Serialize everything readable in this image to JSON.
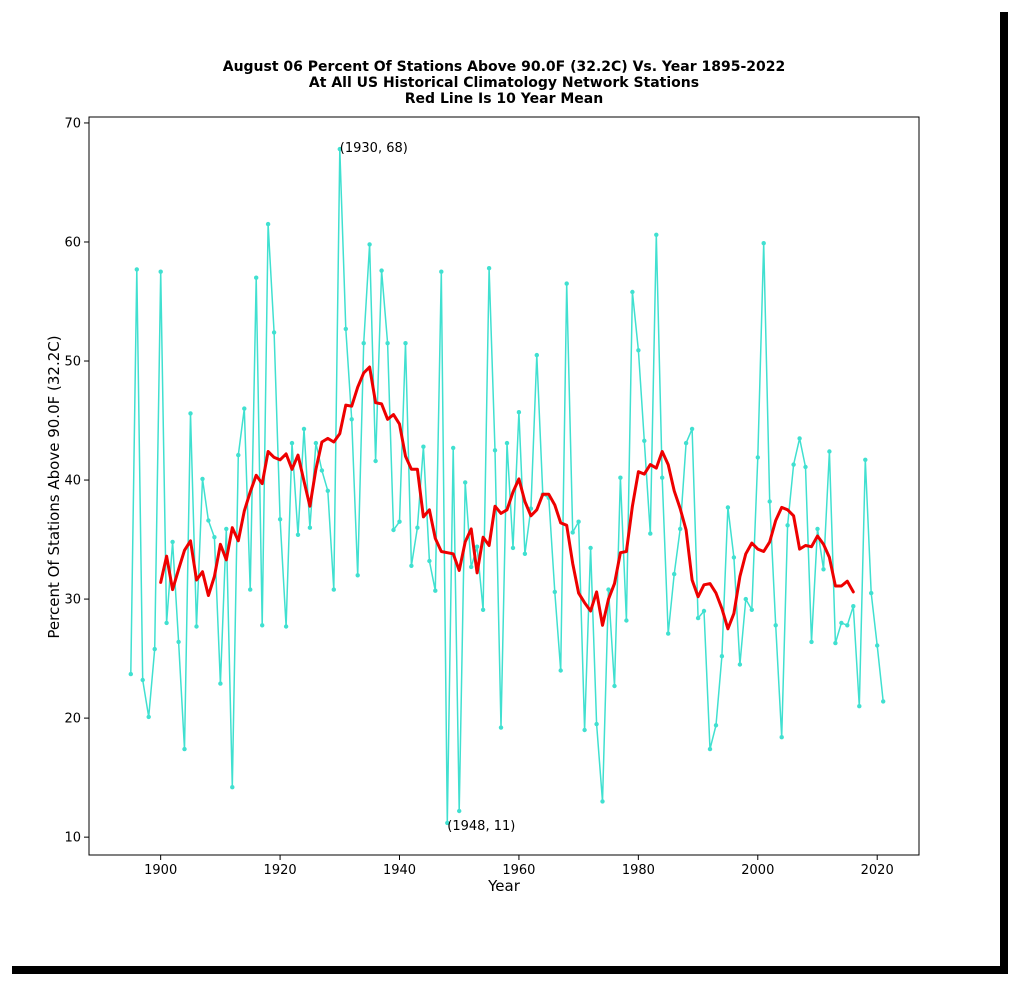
{
  "chart_data": {
    "type": "line",
    "title_lines": [
      "August 06 Percent Of Stations Above 90.0F (32.2C) Vs. Year 1895-2022",
      "At All US Historical Climatology Network Stations",
      "Red Line Is 10 Year Mean"
    ],
    "xlabel": "Year",
    "ylabel": "Percent Of Stations Above 90.0F (32.2C)",
    "xlim": [
      1888,
      2027
    ],
    "ylim": [
      8.5,
      70.5
    ],
    "xticks": [
      1900,
      1920,
      1940,
      1960,
      1980,
      2000,
      2020
    ],
    "yticks": [
      10,
      20,
      30,
      40,
      50,
      60,
      70
    ],
    "grid": false,
    "colors": {
      "series": "#40e0d0",
      "mean": "#ee0000"
    },
    "series": [
      {
        "x": [
          1895,
          1896,
          1897,
          1898,
          1899,
          1900,
          1901,
          1902,
          1903,
          1904,
          1905,
          1906,
          1907,
          1908,
          1909,
          1910,
          1911,
          1912,
          1913,
          1914,
          1915,
          1916,
          1917,
          1918,
          1919,
          1920,
          1921,
          1922,
          1923,
          1924,
          1925,
          1926,
          1927,
          1928,
          1929,
          1930,
          1931,
          1932,
          1933,
          1934,
          1935,
          1936,
          1937,
          1938,
          1939,
          1940,
          1941,
          1942,
          1943,
          1944,
          1945,
          1946,
          1947,
          1948,
          1949,
          1950,
          1951,
          1952,
          1953,
          1954,
          1955,
          1956,
          1957,
          1958,
          1959,
          1960,
          1961,
          1962,
          1963,
          1964,
          1965,
          1966,
          1967,
          1968,
          1969,
          1970,
          1971,
          1972,
          1973,
          1974,
          1975,
          1976,
          1977,
          1978,
          1979,
          1980,
          1981,
          1982,
          1983,
          1984,
          1985,
          1986,
          1987,
          1988,
          1989,
          1990,
          1991,
          1992,
          1993,
          1994,
          1995,
          1996,
          1997,
          1998,
          1999,
          2000,
          2001,
          2002,
          2003,
          2004,
          2005,
          2006,
          2007,
          2008,
          2009,
          2010,
          2011,
          2012,
          2013,
          2014,
          2015,
          2016,
          2017,
          2018,
          2019,
          2020,
          2021
        ],
        "values": [
          23.7,
          57.7,
          23.2,
          20.1,
          25.8,
          57.5,
          28.0,
          34.8,
          26.4,
          17.4,
          45.6,
          27.7,
          40.1,
          36.6,
          35.2,
          22.9,
          35.9,
          14.2,
          42.1,
          46.0,
          30.8,
          57.0,
          27.8,
          61.5,
          52.4,
          36.7,
          27.7,
          43.1,
          35.4,
          44.3,
          36.0,
          43.1,
          40.8,
          39.1,
          30.8,
          67.8,
          52.7,
          45.1,
          32.0,
          51.5,
          59.8,
          41.6,
          57.6,
          51.5,
          35.8,
          36.5,
          51.5,
          32.8,
          36.0,
          42.8,
          33.2,
          30.7,
          57.5,
          11.2,
          42.7,
          12.2,
          39.8,
          32.7,
          34.4,
          29.1,
          57.8,
          42.5,
          19.2,
          43.1,
          34.3,
          45.7,
          33.8,
          37.6,
          50.5,
          38.8,
          38.5,
          30.6,
          24.0,
          56.5,
          35.6,
          36.5,
          19.0,
          34.3,
          19.5,
          13.0,
          30.8,
          22.7,
          40.2,
          28.2,
          55.8,
          50.9,
          43.3,
          35.5,
          60.6,
          40.2,
          27.1,
          32.1,
          35.9,
          43.1,
          44.3,
          28.4,
          29.0,
          17.4,
          19.4,
          25.2,
          37.7,
          33.5,
          24.5,
          30.0,
          29.1,
          41.9,
          59.9,
          38.2,
          27.8,
          18.4,
          36.2,
          41.3,
          43.5,
          41.1,
          26.4,
          35.9,
          32.5,
          42.4,
          26.3,
          28.0,
          27.8,
          29.4,
          21.0,
          41.7,
          30.5,
          26.1,
          21.4
        ]
      },
      {
        "x": [
          1900,
          1901,
          1902,
          1903,
          1904,
          1905,
          1906,
          1907,
          1908,
          1909,
          1910,
          1911,
          1912,
          1913,
          1914,
          1915,
          1916,
          1917,
          1918,
          1919,
          1920,
          1921,
          1922,
          1923,
          1924,
          1925,
          1926,
          1927,
          1928,
          1929,
          1930,
          1931,
          1932,
          1933,
          1934,
          1935,
          1936,
          1937,
          1938,
          1939,
          1940,
          1941,
          1942,
          1943,
          1944,
          1945,
          1946,
          1947,
          1948,
          1949,
          1950,
          1951,
          1952,
          1953,
          1954,
          1955,
          1956,
          1957,
          1958,
          1959,
          1960,
          1961,
          1962,
          1963,
          1964,
          1965,
          1966,
          1967,
          1968,
          1969,
          1970,
          1971,
          1972,
          1973,
          1974,
          1975,
          1976,
          1977,
          1978,
          1979,
          1980,
          1981,
          1982,
          1983,
          1984,
          1985,
          1986,
          1987,
          1988,
          1989,
          1990,
          1991,
          1992,
          1993,
          1994,
          1995,
          1996,
          1997,
          1998,
          1999,
          2000,
          2001,
          2002,
          2003,
          2004,
          2005,
          2006,
          2007,
          2008,
          2009,
          2010,
          2011,
          2012,
          2013,
          2014,
          2015,
          2016
        ],
        "values": [
          31.4,
          33.6,
          30.8,
          32.5,
          34.1,
          34.9,
          31.6,
          32.3,
          30.3,
          31.9,
          34.6,
          33.3,
          36.0,
          34.9,
          37.4,
          39.0,
          40.4,
          39.7,
          42.4,
          41.9,
          41.7,
          42.2,
          40.9,
          42.1,
          39.9,
          37.8,
          40.9,
          43.2,
          43.5,
          43.2,
          43.9,
          46.3,
          46.2,
          47.8,
          49.0,
          49.5,
          46.5,
          46.4,
          45.1,
          45.5,
          44.7,
          42.0,
          40.9,
          40.9,
          36.9,
          37.5,
          35.1,
          34.0,
          33.9,
          33.8,
          32.4,
          34.8,
          35.9,
          32.2,
          35.2,
          34.5,
          37.8,
          37.2,
          37.5,
          39.0,
          40.1,
          38.2,
          37.0,
          37.5,
          38.8,
          38.8,
          37.9,
          36.4,
          36.2,
          33.0,
          30.5,
          29.7,
          29.0,
          30.6,
          27.8,
          30.0,
          31.3,
          33.9,
          34.0,
          37.8,
          40.7,
          40.5,
          41.3,
          41.0,
          42.4,
          41.3,
          39.1,
          37.6,
          35.8,
          31.6,
          30.2,
          31.2,
          31.3,
          30.5,
          29.2,
          27.5,
          28.8,
          31.9,
          33.8,
          34.7,
          34.2,
          34.0,
          34.8,
          36.6,
          37.7,
          37.5,
          37.0,
          34.2,
          34.5,
          34.4,
          35.3,
          34.6,
          33.5,
          31.1,
          31.1,
          31.5,
          30.6
        ]
      }
    ],
    "annotations": [
      {
        "text": "(1930, 68)",
        "x": 1930,
        "y": 68
      },
      {
        "text": "(1948, 11)",
        "x": 1948,
        "y": 11
      }
    ]
  }
}
